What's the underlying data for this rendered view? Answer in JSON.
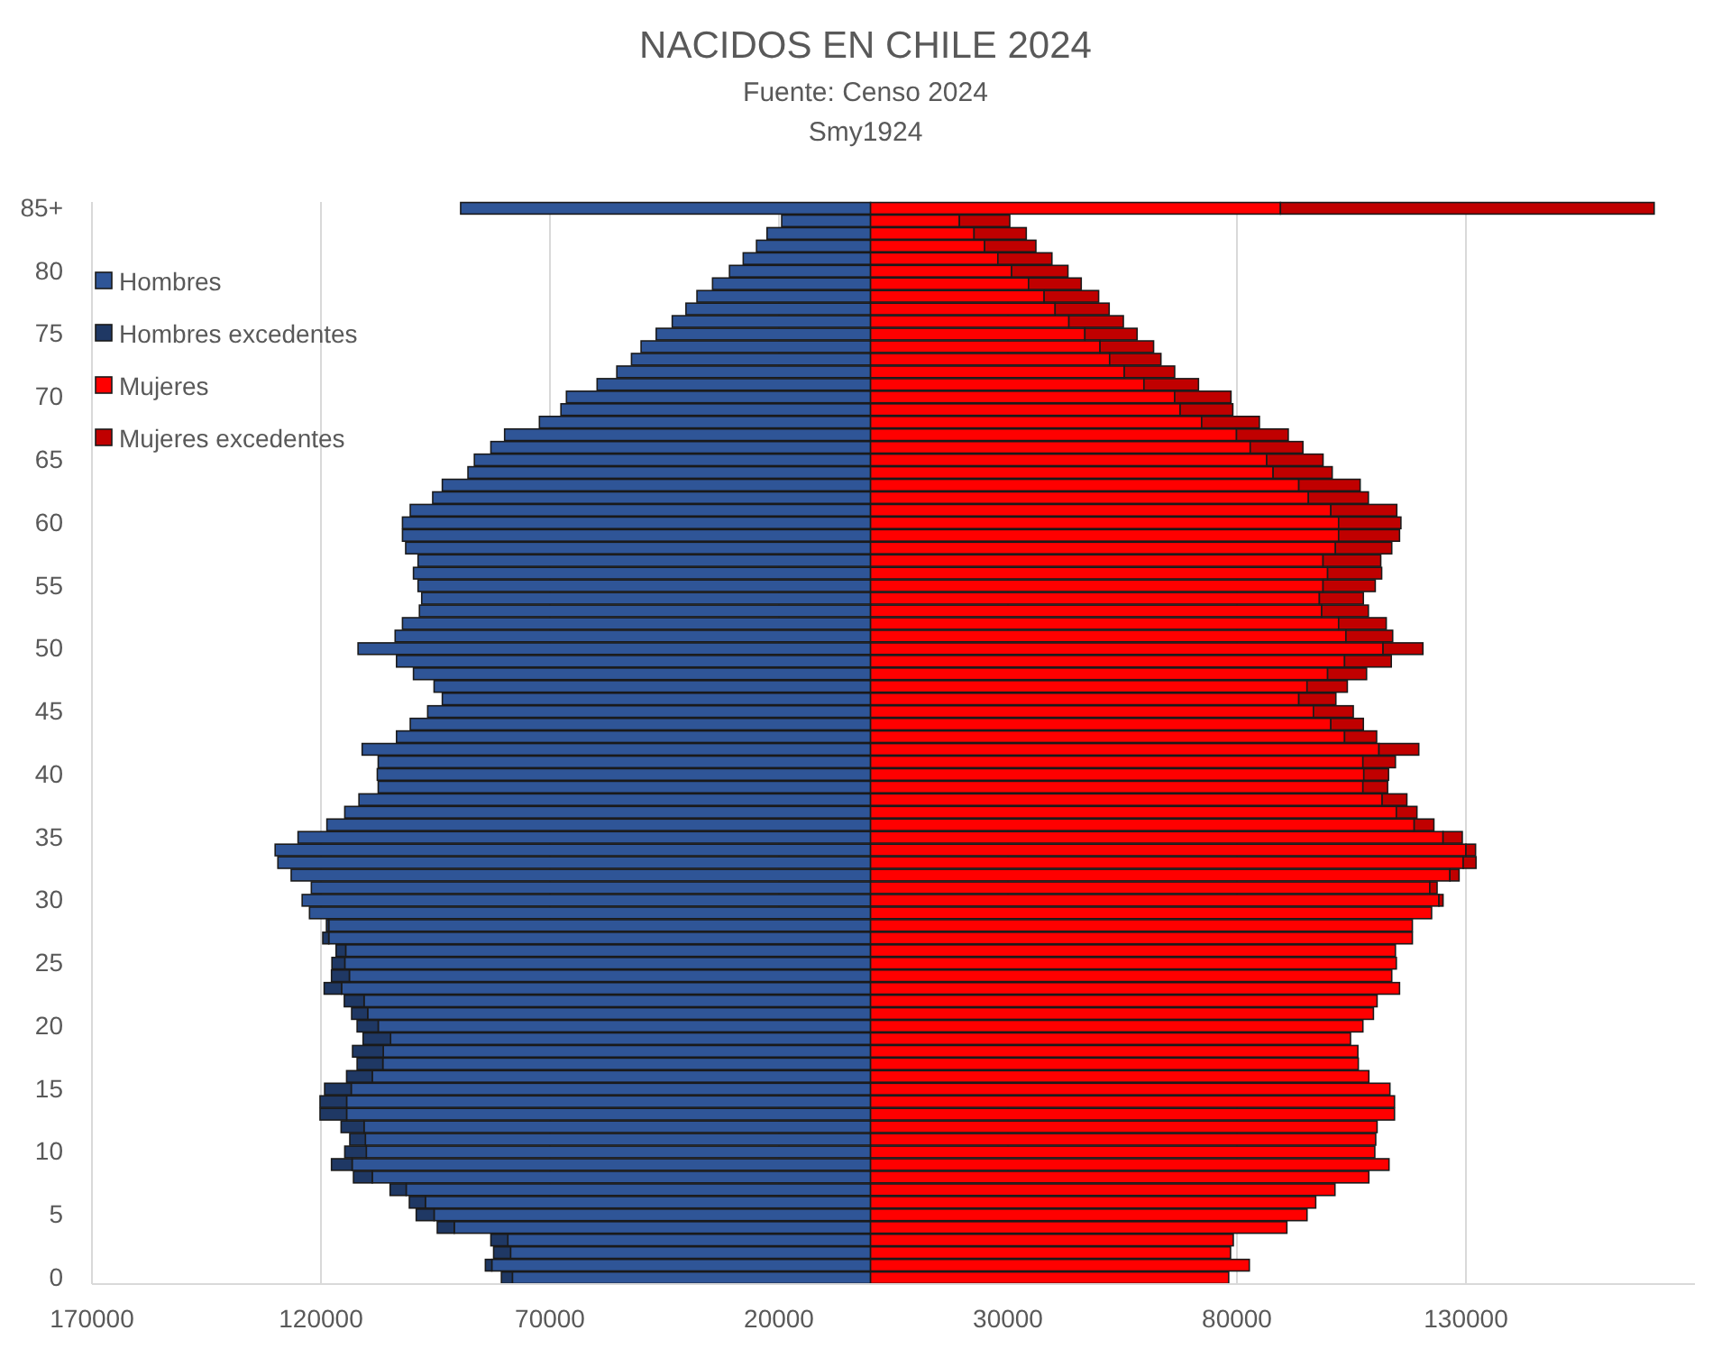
{
  "chart_data": {
    "type": "bar",
    "orientation": "horizontal",
    "stacked": true,
    "title": "NACIDOS EN CHILE 2024",
    "subtitle": "Fuente: Censo 2024",
    "annotations": [
      "Smy1924"
    ],
    "categories": [
      "85+",
      null,
      null,
      null,
      null,
      "80",
      null,
      null,
      null,
      null,
      "75",
      null,
      null,
      null,
      null,
      "70",
      null,
      null,
      null,
      null,
      "65",
      null,
      null,
      null,
      null,
      "60",
      null,
      null,
      null,
      null,
      "55",
      null,
      null,
      null,
      null,
      "50",
      null,
      null,
      null,
      null,
      "45",
      null,
      null,
      null,
      null,
      "40",
      null,
      null,
      null,
      null,
      "35",
      null,
      null,
      null,
      null,
      "30",
      null,
      null,
      null,
      null,
      "25",
      null,
      null,
      null,
      null,
      "20",
      null,
      null,
      null,
      null,
      "15",
      null,
      null,
      null,
      null,
      "10",
      null,
      null,
      null,
      null,
      "5",
      null,
      null,
      null,
      null,
      "0"
    ],
    "series": [
      {
        "name": "Hombres",
        "color": "#2f5597",
        "values": [
          -89500,
          -19400,
          -22600,
          -24900,
          -27800,
          -30800,
          -34500,
          -37900,
          -40300,
          -43300,
          -46800,
          -50100,
          -52200,
          -55400,
          -59700,
          -66400,
          -67600,
          -72300,
          -79900,
          -82900,
          -86500,
          -87900,
          -93500,
          -95600,
          -100500,
          -102200,
          -102200,
          -101500,
          -98800,
          -99800,
          -98800,
          -98000,
          -98500,
          -102200,
          -103800,
          -111900,
          -103500,
          -99800,
          -95300,
          -93500,
          -96700,
          -100500,
          -103500,
          -111000,
          -107500,
          -107700,
          -107500,
          -111700,
          -114800,
          -118700,
          -125000,
          -130000,
          -129400,
          -126500,
          -122100,
          -124100,
          -122500,
          -118300,
          -118300,
          -114600,
          -114800,
          -113800,
          -115500,
          -110600,
          -109800,
          -107500,
          -104800,
          -106400,
          -106500,
          -108800,
          -113400,
          -114400,
          -114400,
          -110600,
          -110300,
          -110100,
          -113200,
          -108800,
          -101400,
          -97200,
          -95300,
          -90900,
          -79200,
          -78600,
          -82700,
          -78200
        ]
      },
      {
        "name": "Hombres excedentes",
        "color": "#1f3864",
        "values": [
          null,
          null,
          null,
          null,
          null,
          null,
          null,
          null,
          null,
          null,
          null,
          null,
          null,
          null,
          null,
          null,
          null,
          null,
          null,
          null,
          null,
          null,
          null,
          null,
          null,
          null,
          null,
          null,
          null,
          null,
          null,
          null,
          null,
          null,
          null,
          null,
          null,
          null,
          null,
          null,
          null,
          null,
          null,
          null,
          null,
          null,
          null,
          null,
          null,
          null,
          null,
          null,
          null,
          null,
          null,
          null,
          null,
          -500,
          -1300,
          -2100,
          -2800,
          -3900,
          -3800,
          -4300,
          -3500,
          -4600,
          -6000,
          -6700,
          -5600,
          -5600,
          -5800,
          -5800,
          -5800,
          -5000,
          -3400,
          -4700,
          -4500,
          -4100,
          -3500,
          -3500,
          -3900,
          -3700,
          -3700,
          -3700,
          -1400,
          -2400
        ]
      },
      {
        "name": "Mujeres",
        "color": "#ff0000",
        "values": [
          89500,
          19400,
          22600,
          24900,
          27800,
          30800,
          34500,
          37900,
          40300,
          43300,
          46800,
          50100,
          52200,
          55400,
          59700,
          66400,
          67600,
          72300,
          79900,
          82900,
          86500,
          87900,
          93500,
          95600,
          100500,
          102200,
          102200,
          101500,
          98800,
          99800,
          98800,
          98000,
          98500,
          102200,
          103800,
          111900,
          103500,
          99800,
          95300,
          93500,
          96700,
          100500,
          103500,
          111000,
          107500,
          107700,
          107500,
          111700,
          114800,
          118700,
          125000,
          130000,
          129400,
          126500,
          122100,
          124100,
          122500,
          118300,
          118300,
          114600,
          114800,
          113800,
          115500,
          110600,
          109800,
          107500,
          104800,
          106400,
          106500,
          108800,
          113400,
          114400,
          114400,
          110600,
          110300,
          110100,
          113200,
          108800,
          101400,
          97200,
          95300,
          90900,
          79200,
          78600,
          82700,
          78200
        ]
      },
      {
        "name": "Mujeres excedentes",
        "color": "#c00000",
        "values": [
          81600,
          11000,
          11400,
          11200,
          11800,
          12300,
          11500,
          11900,
          11800,
          11900,
          11400,
          11700,
          11200,
          11000,
          11900,
          12300,
          11500,
          12600,
          11300,
          11500,
          12300,
          12900,
          13400,
          13100,
          14400,
          13600,
          13300,
          12300,
          12600,
          11800,
          11400,
          9600,
          10200,
          10400,
          10200,
          8700,
          10200,
          8500,
          8800,
          8100,
          8700,
          7100,
          7000,
          8700,
          7100,
          5400,
          5400,
          5400,
          4500,
          4300,
          4200,
          2100,
          2800,
          2000,
          1600,
          900,
          null,
          null,
          null,
          null,
          null,
          null,
          null,
          null,
          null,
          null,
          null,
          null,
          null,
          null,
          null,
          null,
          null,
          null,
          null,
          null,
          null,
          null,
          null,
          null,
          null,
          null,
          null,
          null,
          null,
          null
        ]
      }
    ],
    "xlim": [
      -170000,
      180000
    ],
    "xticks": [
      {
        "value": -170000,
        "label": "170000"
      },
      {
        "value": -120000,
        "label": "120000"
      },
      {
        "value": -70000,
        "label": "70000"
      },
      {
        "value": -20000,
        "label": "20000"
      },
      30000,
      80000,
      130000
    ],
    "grid": "x",
    "legend": "top left"
  }
}
